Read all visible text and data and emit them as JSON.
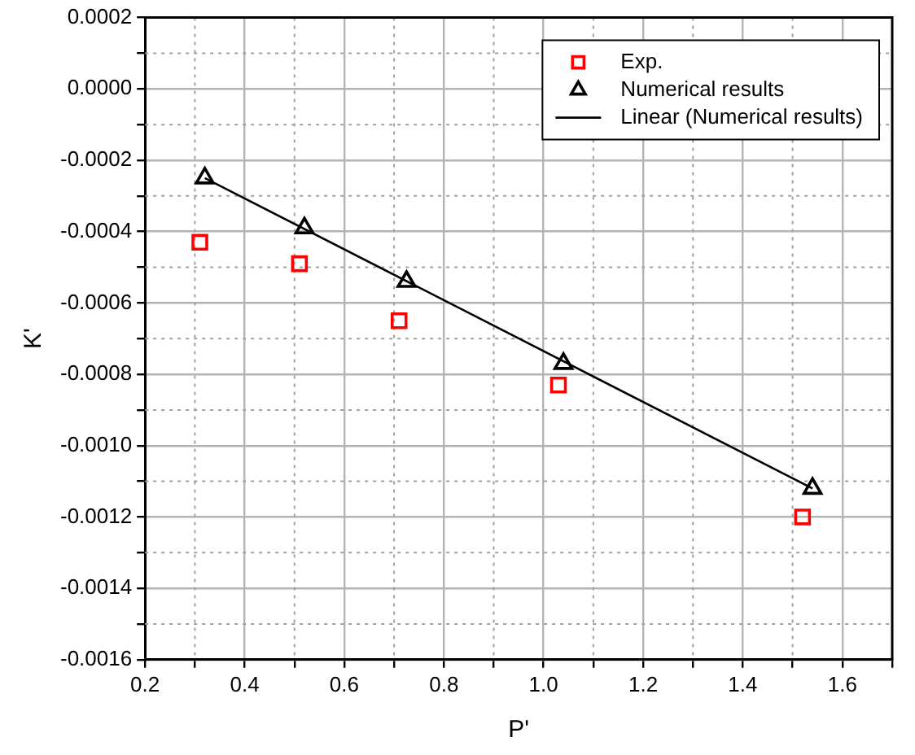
{
  "chart_data": {
    "type": "scatter",
    "xlabel": "P'",
    "ylabel": "K'",
    "grid": true,
    "legend": "top right",
    "xlim": [
      0.2,
      1.7
    ],
    "xticks": [
      0.2,
      {
        "value": 0.3,
        "label": null
      },
      0.4,
      {
        "value": 0.5,
        "label": null
      },
      0.6,
      {
        "value": 0.7,
        "label": null
      },
      0.8,
      {
        "value": 0.9,
        "label": null
      },
      {
        "value": 1.0,
        "label": "1.0"
      },
      {
        "value": 1.1,
        "label": null
      },
      1.2,
      {
        "value": 1.3,
        "label": null
      },
      1.4,
      {
        "value": 1.5,
        "label": null
      },
      1.6,
      {
        "value": 1.7,
        "label": null
      }
    ],
    "ylim": [
      -0.0016,
      0.0002
    ],
    "yticks": [
      {
        "value": 0.0002,
        "label": "0.0002"
      },
      {
        "value": 0.0001,
        "label": null
      },
      {
        "value": 0,
        "label": "0.0000"
      },
      {
        "value": -0.0001,
        "label": null
      },
      {
        "value": -0.0002,
        "label": "-0.0002"
      },
      {
        "value": -0.0003,
        "label": null
      },
      {
        "value": -0.0004,
        "label": "-0.0004"
      },
      {
        "value": -0.0005,
        "label": null
      },
      {
        "value": -0.0006,
        "label": "-0.0006"
      },
      {
        "value": -0.0007,
        "label": null
      },
      {
        "value": -0.0008,
        "label": "-0.0008"
      },
      {
        "value": -0.0009,
        "label": null
      },
      {
        "value": -0.001,
        "label": "-0.0010"
      },
      {
        "value": -0.0011,
        "label": null
      },
      {
        "value": -0.0012,
        "label": "-0.0012"
      },
      {
        "value": -0.0013,
        "label": null
      },
      {
        "value": -0.0014,
        "label": "-0.0014"
      },
      {
        "value": -0.0015,
        "label": null
      },
      {
        "value": -0.0016,
        "label": "-0.0016"
      }
    ],
    "series": [
      {
        "name": "Exp.",
        "type": "scatter",
        "marker": "square",
        "color": "#ff0000",
        "x": [
          0.31,
          0.51,
          0.71,
          1.03,
          1.52
        ],
        "values": [
          -0.00043,
          -0.00049,
          -0.00065,
          -0.00083,
          -0.0012
        ]
      },
      {
        "name": "Numerical results",
        "type": "scatter",
        "marker": "triangle",
        "color": "#000000",
        "x": [
          0.32,
          0.52,
          0.725,
          1.04,
          1.54
        ],
        "values": [
          -0.00025,
          -0.00039,
          -0.00054,
          -0.00077,
          -0.00112
        ]
      },
      {
        "name": "Linear (Numerical results)",
        "type": "line",
        "marker": "none",
        "line_style": "solid",
        "color": "#000000",
        "x": [
          0.32,
          1.54
        ],
        "values": [
          -0.00025,
          -0.00112
        ]
      }
    ]
  }
}
